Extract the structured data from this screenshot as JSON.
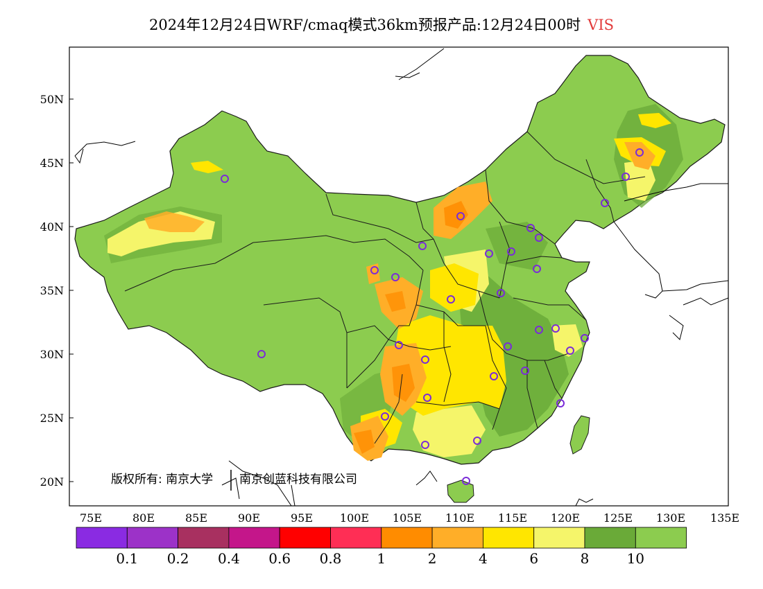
{
  "title": {
    "main": "2024年12月24日WRF/cmaq模式36km预报产品:12月24日00时",
    "variable": "VIS"
  },
  "colors": {
    "province_fill": "#8ccc4f",
    "province_border": "#1a1a1a",
    "ocean": "#ffffff"
  },
  "axes": {
    "lat_labels": [
      "50N",
      "45N",
      "40N",
      "35N",
      "30N",
      "25N",
      "20N"
    ],
    "lon_labels": [
      "75E",
      "80E",
      "85E",
      "90E",
      "95E",
      "100E",
      "105E",
      "110E",
      "115E",
      "120E",
      "125E",
      "130E",
      "135E"
    ]
  },
  "copyright": {
    "left": "版权所有: 南京大学",
    "right": "南京创蓝科技有限公司"
  },
  "colorbar": {
    "colors": [
      "#8a2be2",
      "#9c32c8",
      "#a83060",
      "#c4168a",
      "#ff0000",
      "#ff2e55",
      "#ff8c00",
      "#ffae28",
      "#ffe600",
      "#f5f56a",
      "#6aaa38",
      "#8ccc4f"
    ],
    "labels": [
      "0.1",
      "0.2",
      "0.4",
      "0.6",
      "0.8",
      "1",
      "2",
      "4",
      "6",
      "8",
      "10"
    ]
  }
}
